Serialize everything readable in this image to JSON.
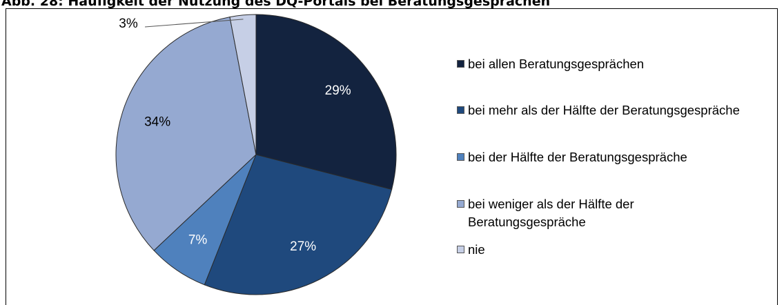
{
  "chart_data": {
    "type": "pie",
    "title": "Abb. 28: Häufigkeit der Nutzung des DQ-Portals bei Beratungsgesprächen",
    "categories": [
      "bei allen Beratungsgesprächen",
      "bei mehr als der Hälfte der Beratungsgespräche",
      "bei der Hälfte der Beratungsgespräche",
      "bei weniger als der Hälfte der Beratungsgespräche",
      "nie"
    ],
    "values": [
      29,
      27,
      7,
      34,
      3
    ],
    "value_labels": [
      "29%",
      "27%",
      "7%",
      "34%",
      "3%"
    ],
    "colors": [
      "#13233f",
      "#1f497d",
      "#4f81bd",
      "#95a9d1",
      "#c6cfe6"
    ],
    "legend": "right"
  }
}
